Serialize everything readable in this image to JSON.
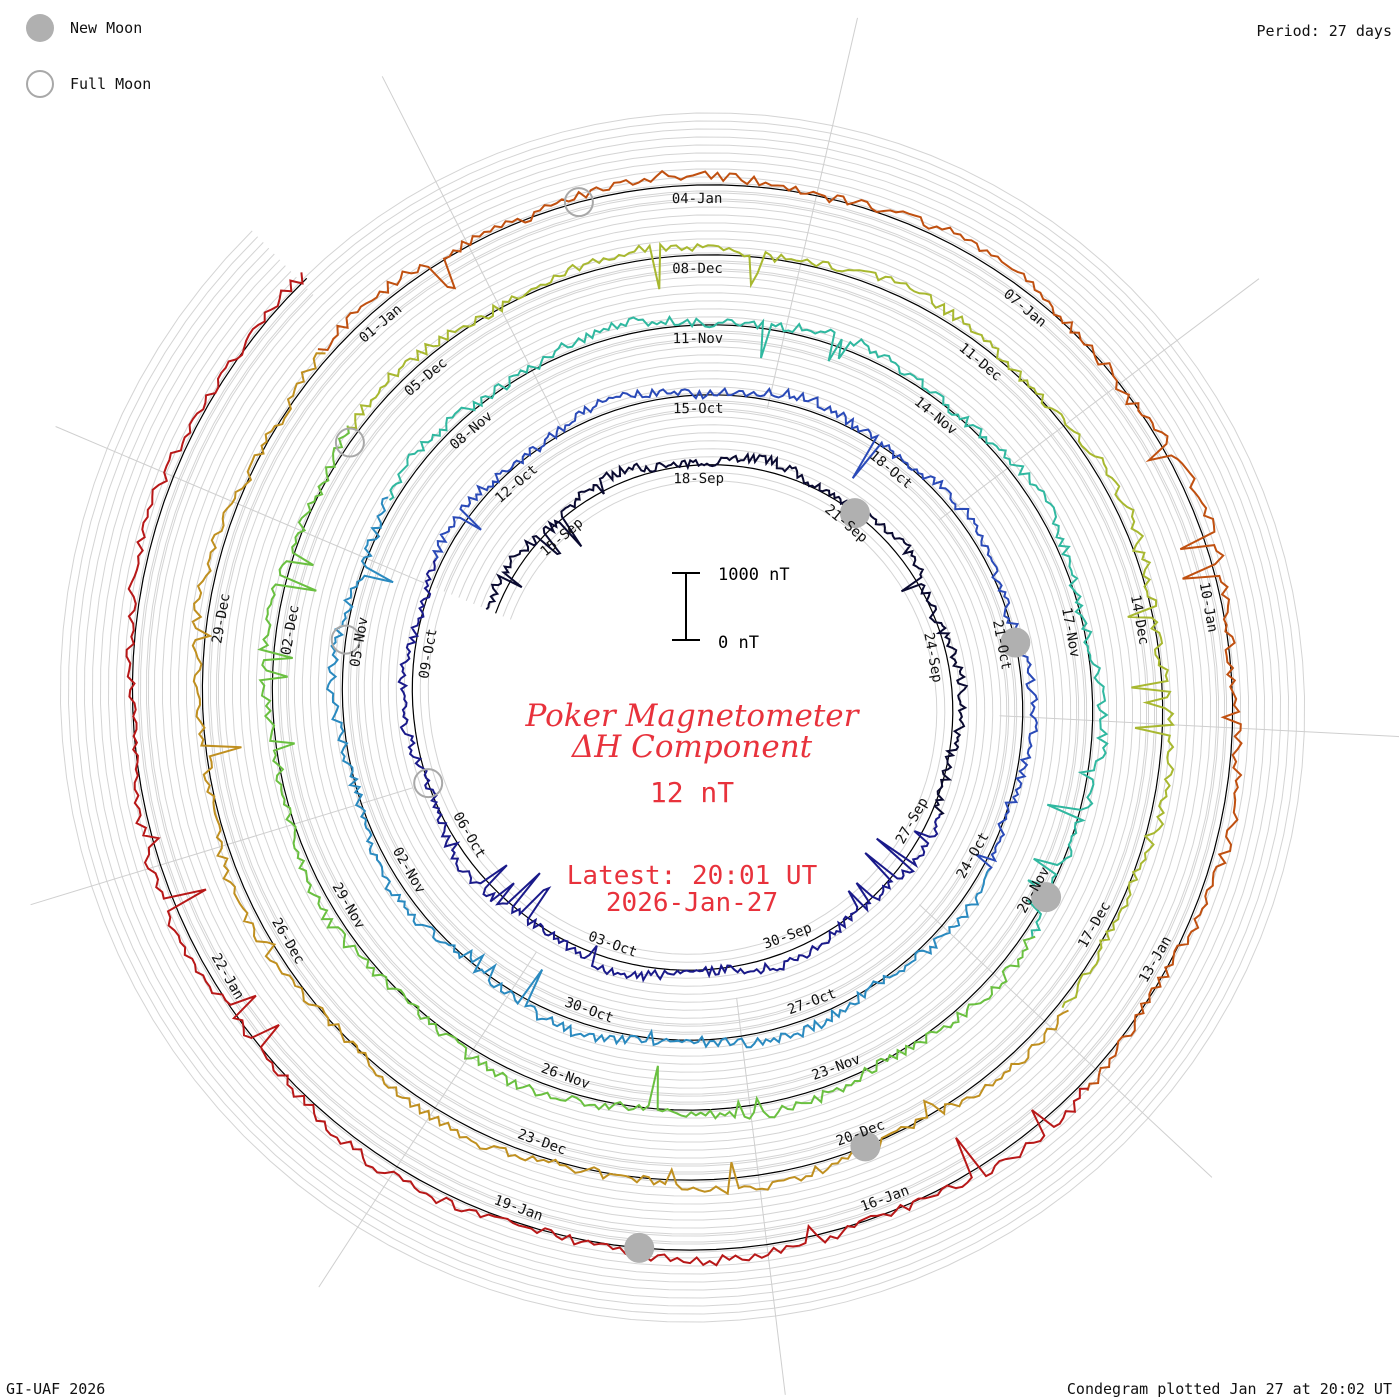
{
  "header": {
    "period": "Period: 27 days"
  },
  "legend": {
    "new_moon": {
      "label": "New Moon",
      "color": "#b0b0b0"
    },
    "full_moon": {
      "label": "Full Moon",
      "color": "#a8a8a8"
    }
  },
  "footer": {
    "left": "GI-UAF 2026",
    "right": "Condegram plotted Jan 27 at 20:02 UT"
  },
  "center": {
    "title_line1": "Poker Magnetometer",
    "title_line2": "ΔH Component",
    "value": "12 nT",
    "latest_line1": "Latest: 20:01 UT",
    "latest_line2": "2026-Jan-27",
    "color": "#e8323c"
  },
  "scale_bar": {
    "top_label": "1000 nT",
    "bottom_label": "0 nT"
  },
  "chart_data": {
    "type": "line",
    "layout": "spiral condegram",
    "period_days": 27,
    "start": "2025-09-13",
    "end": "2026-01-27T20:01",
    "date_labels": [
      "15-Sep",
      "18-Sep",
      "21-Sep",
      "24-Sep",
      "27-Sep",
      "30-Sep",
      "03-Oct",
      "06-Oct",
      "09-Oct",
      "12-Oct",
      "15-Oct",
      "18-Oct",
      "21-Oct",
      "24-Oct",
      "27-Oct",
      "30-Oct",
      "02-Nov",
      "05-Nov",
      "08-Nov",
      "11-Nov",
      "14-Nov",
      "17-Nov",
      "20-Nov",
      "23-Nov",
      "26-Nov",
      "29-Nov",
      "02-Dec",
      "05-Dec",
      "08-Dec",
      "11-Dec",
      "14-Dec",
      "17-Dec",
      "20-Dec",
      "23-Dec",
      "26-Dec",
      "29-Dec",
      "01-Jan",
      "04-Jan",
      "07-Jan",
      "10-Jan",
      "13-Jan",
      "16-Jan",
      "19-Jan",
      "22-Jan"
    ],
    "new_moons": [
      "2025-09-21",
      "2025-10-21",
      "2025-11-20",
      "2025-12-20",
      "2026-01-18"
    ],
    "full_moons": [
      "2025-10-07",
      "2025-11-05",
      "2025-12-04",
      "2026-01-03"
    ],
    "series_colors": [
      "#0a0a30",
      "#1a1a8a",
      "#2a4ab8",
      "#2a8ac0",
      "#30b8a0",
      "#6ac040",
      "#a8b830",
      "#c09020",
      "#c05010",
      "#b81818"
    ],
    "scale_nT": 1000
  }
}
